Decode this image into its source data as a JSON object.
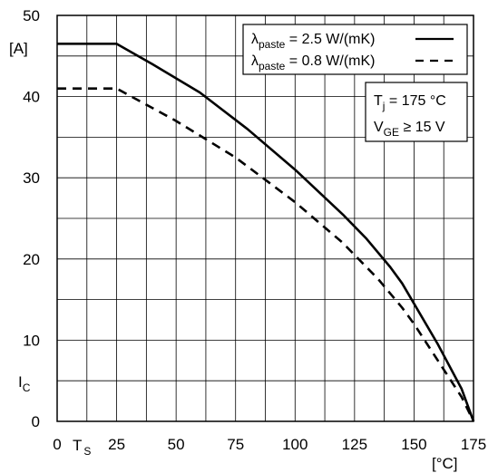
{
  "chart_data": {
    "type": "line",
    "xlim": [
      0,
      175
    ],
    "ylim": [
      0,
      50
    ],
    "x_ticks": [
      0,
      25,
      50,
      75,
      100,
      125,
      150,
      175
    ],
    "y_ticks": [
      0,
      10,
      20,
      30,
      40,
      50
    ],
    "x_grid_step": 12.5,
    "y_grid_step": 5,
    "grid": true,
    "xlabel": {
      "main": "T",
      "sub": "S"
    },
    "ylabel": {
      "main": "I",
      "sub": "C"
    },
    "x_unit": "[°C]",
    "y_unit": "[A]",
    "series": [
      {
        "name": {
          "main": "λ",
          "sub": "paste",
          "rest": " = 2.5 W/(mK)"
        },
        "style": "solid",
        "color": "#000000",
        "x": [
          0,
          25,
          40,
          60,
          80,
          100,
          120,
          130,
          140,
          145,
          150,
          160,
          170,
          175
        ],
        "y": [
          46.5,
          46.5,
          44,
          40.5,
          36,
          31,
          25.5,
          22.5,
          19,
          17,
          14.5,
          9.5,
          4,
          0
        ]
      },
      {
        "name": {
          "main": "λ",
          "sub": "paste",
          "rest": " = 0.8 W/(mK)"
        },
        "style": "dashed",
        "color": "#000000",
        "x": [
          0,
          25,
          50,
          75,
          100,
          120,
          135,
          145,
          150,
          160,
          170,
          175
        ],
        "y": [
          41,
          41,
          37,
          32.5,
          27,
          22,
          17.5,
          14,
          12,
          7.5,
          3,
          0
        ]
      }
    ],
    "annotation": {
      "lines": [
        {
          "main": "T",
          "sub": "j",
          "rest": " = 175 °C"
        },
        {
          "main": "V",
          "sub": "GE",
          "rest": " ≥ 15 V"
        }
      ]
    }
  }
}
